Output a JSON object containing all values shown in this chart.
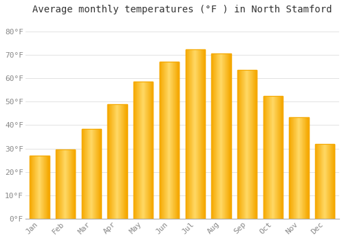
{
  "months": [
    "Jan",
    "Feb",
    "Mar",
    "Apr",
    "May",
    "Jun",
    "Jul",
    "Aug",
    "Sep",
    "Oct",
    "Nov",
    "Dec"
  ],
  "values": [
    27,
    29.5,
    38.5,
    49,
    58.5,
    67,
    72.5,
    70.5,
    63.5,
    52.5,
    43.5,
    32
  ],
  "bar_color_center": "#FFD966",
  "bar_color_edge": "#F5A800",
  "background_color": "#FFFFFF",
  "grid_color": "#DDDDDD",
  "title": "Average monthly temperatures (°F ) in North Stamford",
  "ylabel_ticks": [
    "0°F",
    "10°F",
    "20°F",
    "30°F",
    "40°F",
    "50°F",
    "60°F",
    "70°F",
    "80°F"
  ],
  "ytick_values": [
    0,
    10,
    20,
    30,
    40,
    50,
    60,
    70,
    80
  ],
  "ylim": [
    0,
    85
  ],
  "title_fontsize": 10,
  "tick_fontsize": 8,
  "tick_color": "#888888",
  "title_color": "#333333",
  "bar_width": 0.75
}
